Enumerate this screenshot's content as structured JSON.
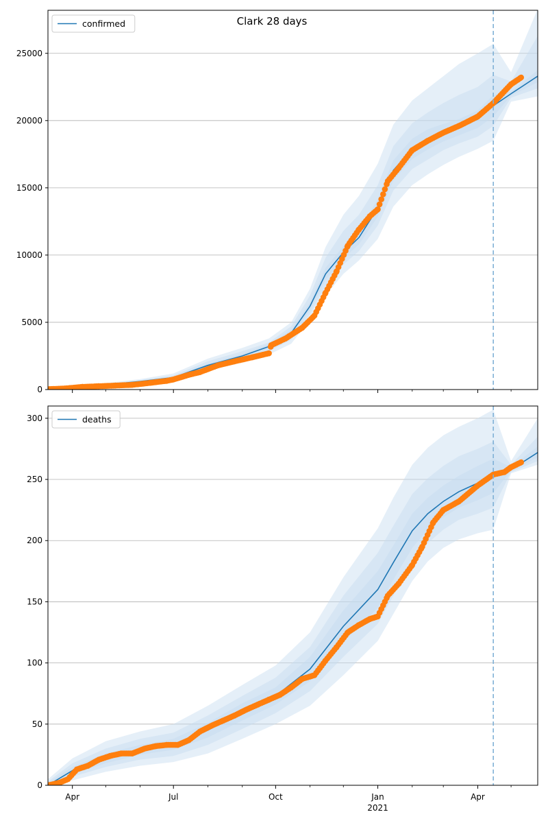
{
  "figure": {
    "title": "Clark 28 days"
  },
  "x_axis": {
    "start": "2020-03-10",
    "end": "2021-05-25",
    "major_ticks": [
      {
        "date": "2020-04-01",
        "label": "Apr",
        "sublabel": ""
      },
      {
        "date": "2020-07-01",
        "label": "Jul",
        "sublabel": ""
      },
      {
        "date": "2020-10-01",
        "label": "Oct",
        "sublabel": ""
      },
      {
        "date": "2021-01-01",
        "label": "Jan",
        "sublabel": "2021"
      },
      {
        "date": "2021-04-01",
        "label": "Apr",
        "sublabel": ""
      }
    ],
    "minor_ticks": [
      "2020-05-01",
      "2020-06-01",
      "2020-08-01",
      "2020-09-01",
      "2020-11-01",
      "2020-12-01",
      "2021-02-01",
      "2021-03-01",
      "2021-05-01"
    ]
  },
  "chart_data": [
    {
      "type": "line",
      "legend": {
        "label": "confirmed",
        "position": "upper left"
      },
      "ylim": [
        0,
        28200
      ],
      "yticks": [
        0,
        5000,
        10000,
        15000,
        20000,
        25000
      ],
      "grid": "y",
      "forecast_start": "2021-04-15",
      "colors": {
        "model": "#1f77b4",
        "band": "#c6dbef",
        "observed": "#ff7f0e",
        "vline": "#7fb0d6"
      },
      "model": {
        "x": [
          "2020-03-10",
          "2020-04-01",
          "2020-05-01",
          "2020-06-01",
          "2020-07-01",
          "2020-08-01",
          "2020-09-01",
          "2020-09-25",
          "2020-10-15",
          "2020-11-01",
          "2020-11-15",
          "2020-12-01",
          "2020-12-15",
          "2021-01-01",
          "2021-01-15",
          "2021-02-01",
          "2021-02-15",
          "2021-03-01",
          "2021-03-15",
          "2021-04-01",
          "2021-04-15",
          "2021-05-01",
          "2021-05-25"
        ],
        "y": [
          50,
          150,
          350,
          600,
          900,
          1800,
          2500,
          3200,
          4200,
          6200,
          8600,
          10200,
          11300,
          13500,
          16300,
          17900,
          18600,
          19100,
          19500,
          20100,
          21100,
          22000,
          23300
        ]
      },
      "bands": [
        {
          "x": [
            "2020-03-10",
            "2020-04-01",
            "2020-05-01",
            "2020-06-01",
            "2020-07-01",
            "2020-08-01",
            "2020-09-01",
            "2020-09-25",
            "2020-10-15",
            "2020-11-01",
            "2020-11-15",
            "2020-12-01",
            "2020-12-15",
            "2021-01-01",
            "2021-01-15",
            "2021-02-01",
            "2021-02-15",
            "2021-03-01",
            "2021-03-15",
            "2021-04-01",
            "2021-04-15",
            "2021-05-01",
            "2021-05-25"
          ],
          "lower": [
            10,
            100,
            250,
            450,
            700,
            1400,
            2000,
            2600,
            3400,
            5200,
            7000,
            8600,
            9600,
            11200,
            13600,
            15200,
            16000,
            16700,
            17300,
            17900,
            18500,
            21400,
            21800
          ],
          "upper": [
            100,
            220,
            480,
            780,
            1200,
            2300,
            3100,
            3800,
            5000,
            7500,
            10600,
            13000,
            14400,
            16800,
            19700,
            21500,
            22400,
            23300,
            24200,
            25000,
            25700,
            23600,
            28300
          ]
        },
        {
          "x": [
            "2020-03-10",
            "2020-04-01",
            "2020-05-01",
            "2020-06-01",
            "2020-07-01",
            "2020-08-01",
            "2020-09-01",
            "2020-09-25",
            "2020-10-15",
            "2020-11-01",
            "2020-11-15",
            "2020-12-01",
            "2020-12-15",
            "2021-01-01",
            "2021-01-15",
            "2021-02-01",
            "2021-02-15",
            "2021-03-01",
            "2021-03-15",
            "2021-04-01",
            "2021-04-15",
            "2021-05-01",
            "2021-05-25"
          ],
          "lower": [
            20,
            120,
            290,
            510,
            780,
            1550,
            2200,
            2850,
            3700,
            5600,
            7700,
            9300,
            10300,
            12200,
            14800,
            16400,
            17100,
            17800,
            18300,
            18800,
            19600,
            21700,
            22400
          ],
          "upper": [
            80,
            190,
            420,
            700,
            1050,
            2100,
            2850,
            3500,
            4700,
            7000,
            9800,
            11800,
            13000,
            15200,
            18100,
            19800,
            20600,
            21300,
            21900,
            22500,
            23400,
            22900,
            26300
          ]
        },
        {
          "x": [
            "2020-03-10",
            "2020-04-01",
            "2020-05-01",
            "2020-06-01",
            "2020-07-01",
            "2020-08-01",
            "2020-09-01",
            "2020-09-25",
            "2020-10-15",
            "2020-11-01",
            "2020-11-15",
            "2020-12-01",
            "2020-12-15",
            "2021-01-01",
            "2021-01-15",
            "2021-02-01",
            "2021-02-15",
            "2021-03-01",
            "2021-03-15",
            "2021-04-01",
            "2021-04-15",
            "2021-05-01",
            "2021-05-25"
          ],
          "lower": [
            35,
            135,
            320,
            555,
            840,
            1680,
            2350,
            3020,
            3950,
            5900,
            8150,
            9750,
            10800,
            12850,
            15550,
            17150,
            17850,
            18450,
            18900,
            19450,
            20300,
            21850,
            22850
          ],
          "upper": [
            65,
            165,
            380,
            645,
            960,
            1920,
            2650,
            3380,
            4450,
            6500,
            9050,
            10650,
            11800,
            14150,
            17050,
            18650,
            19350,
            19750,
            20100,
            20750,
            21900,
            22150,
            23750
          ]
        }
      ],
      "observed": {
        "x": [
          "2020-03-10",
          "2020-03-25",
          "2020-04-10",
          "2020-04-25",
          "2020-05-10",
          "2020-05-25",
          "2020-06-10",
          "2020-06-25",
          "2020-07-01",
          "2020-07-15",
          "2020-07-25",
          "2020-08-10",
          "2020-08-25",
          "2020-09-10",
          "2020-09-25",
          "2020-09-27",
          "2020-10-10",
          "2020-10-25",
          "2020-11-05",
          "2020-11-15",
          "2020-11-25",
          "2020-12-05",
          "2020-12-15",
          "2020-12-25",
          "2021-01-01",
          "2021-01-10",
          "2021-01-20",
          "2021-02-01",
          "2021-02-15",
          "2021-03-01",
          "2021-03-15",
          "2021-04-01",
          "2021-04-15",
          "2021-05-01",
          "2021-05-10"
        ],
        "y": [
          30,
          80,
          200,
          250,
          300,
          350,
          500,
          650,
          750,
          1100,
          1300,
          1800,
          2100,
          2400,
          2700,
          3300,
          3800,
          4600,
          5500,
          7200,
          8800,
          10700,
          11900,
          12900,
          13400,
          15500,
          16500,
          17800,
          18500,
          19100,
          19600,
          20300,
          21300,
          22700,
          23200
        ]
      }
    },
    {
      "type": "line",
      "legend": {
        "label": "deaths",
        "position": "upper left"
      },
      "ylim": [
        0,
        310
      ],
      "yticks": [
        0,
        50,
        100,
        150,
        200,
        250,
        300
      ],
      "grid": "y",
      "forecast_start": "2021-04-15",
      "colors": {
        "model": "#1f77b4",
        "band": "#c6dbef",
        "observed": "#ff7f0e",
        "vline": "#7fb0d6"
      },
      "model": {
        "x": [
          "2020-03-10",
          "2020-04-01",
          "2020-05-01",
          "2020-06-01",
          "2020-07-01",
          "2020-08-01",
          "2020-09-01",
          "2020-10-01",
          "2020-11-01",
          "2020-12-01",
          "2021-01-01",
          "2021-01-15",
          "2021-02-01",
          "2021-02-15",
          "2021-03-01",
          "2021-03-15",
          "2021-04-01",
          "2021-04-15",
          "2021-05-01",
          "2021-05-25"
        ],
        "y": [
          0,
          12,
          22,
          29,
          33,
          45,
          60,
          73,
          95,
          130,
          160,
          182,
          208,
          222,
          232,
          240,
          247,
          253,
          258,
          272
        ]
      },
      "bands": [
        {
          "x": [
            "2020-03-10",
            "2020-04-01",
            "2020-05-01",
            "2020-06-01",
            "2020-07-01",
            "2020-08-01",
            "2020-09-01",
            "2020-10-01",
            "2020-11-01",
            "2020-12-01",
            "2021-01-01",
            "2021-01-15",
            "2021-02-01",
            "2021-02-15",
            "2021-03-01",
            "2021-03-15",
            "2021-04-01",
            "2021-04-15",
            "2021-05-01",
            "2021-05-25"
          ],
          "lower": [
            0,
            4,
            11,
            16,
            19,
            26,
            38,
            50,
            65,
            90,
            118,
            140,
            167,
            183,
            194,
            201,
            206,
            209,
            255,
            262
          ],
          "upper": [
            5,
            22,
            36,
            44,
            50,
            65,
            82,
            98,
            125,
            170,
            210,
            235,
            262,
            276,
            286,
            293,
            300,
            307,
            265,
            300
          ]
        },
        {
          "x": [
            "2020-03-10",
            "2020-04-01",
            "2020-05-01",
            "2020-06-01",
            "2020-07-01",
            "2020-08-01",
            "2020-09-01",
            "2020-10-01",
            "2020-11-01",
            "2020-12-01",
            "2021-01-01",
            "2021-01-15",
            "2021-02-01",
            "2021-02-15",
            "2021-03-01",
            "2021-03-15",
            "2021-04-01",
            "2021-04-15",
            "2021-05-01",
            "2021-05-25"
          ],
          "lower": [
            0,
            7,
            15,
            21,
            24,
            33,
            46,
            59,
            77,
            105,
            132,
            155,
            182,
            198,
            209,
            217,
            222,
            227,
            256,
            265
          ],
          "upper": [
            3,
            18,
            30,
            38,
            43,
            57,
            73,
            88,
            113,
            155,
            190,
            212,
            238,
            251,
            261,
            269,
            275,
            281,
            262,
            285
          ]
        },
        {
          "x": [
            "2020-03-10",
            "2020-04-01",
            "2020-05-01",
            "2020-06-01",
            "2020-07-01",
            "2020-08-01",
            "2020-09-01",
            "2020-10-01",
            "2020-11-01",
            "2020-12-01",
            "2021-01-01",
            "2021-01-15",
            "2021-02-01",
            "2021-02-15",
            "2021-03-01",
            "2021-03-15",
            "2021-04-01",
            "2021-04-15",
            "2021-05-01",
            "2021-05-25"
          ],
          "lower": [
            0,
            9,
            18,
            25,
            29,
            39,
            53,
            66,
            85,
            117,
            145,
            168,
            194,
            209,
            219,
            227,
            233,
            239,
            257,
            268
          ],
          "upper": [
            2,
            15,
            26,
            33,
            38,
            51,
            67,
            80,
            105,
            143,
            175,
            196,
            222,
            235,
            245,
            253,
            261,
            267,
            260,
            277
          ]
        }
      ],
      "observed": {
        "x": [
          "2020-03-10",
          "2020-03-20",
          "2020-03-28",
          "2020-04-05",
          "2020-04-15",
          "2020-04-25",
          "2020-05-05",
          "2020-05-15",
          "2020-05-25",
          "2020-06-05",
          "2020-06-15",
          "2020-06-25",
          "2020-07-05",
          "2020-07-15",
          "2020-07-25",
          "2020-08-05",
          "2020-08-15",
          "2020-08-25",
          "2020-09-05",
          "2020-09-15",
          "2020-09-25",
          "2020-10-05",
          "2020-10-15",
          "2020-10-25",
          "2020-11-05",
          "2020-11-15",
          "2020-11-25",
          "2020-12-05",
          "2020-12-15",
          "2020-12-25",
          "2021-01-01",
          "2021-01-10",
          "2021-01-20",
          "2021-02-01",
          "2021-02-10",
          "2021-02-20",
          "2021-03-01",
          "2021-03-15",
          "2021-04-01",
          "2021-04-15",
          "2021-04-25",
          "2021-05-01",
          "2021-05-10"
        ],
        "y": [
          0,
          2,
          5,
          13,
          16,
          21,
          24,
          26,
          26,
          30,
          32,
          33,
          33,
          37,
          44,
          49,
          53,
          57,
          62,
          66,
          70,
          74,
          80,
          87,
          90,
          102,
          113,
          125,
          131,
          136,
          138,
          155,
          165,
          180,
          195,
          215,
          225,
          232,
          245,
          254,
          256,
          260,
          264
        ]
      }
    }
  ]
}
